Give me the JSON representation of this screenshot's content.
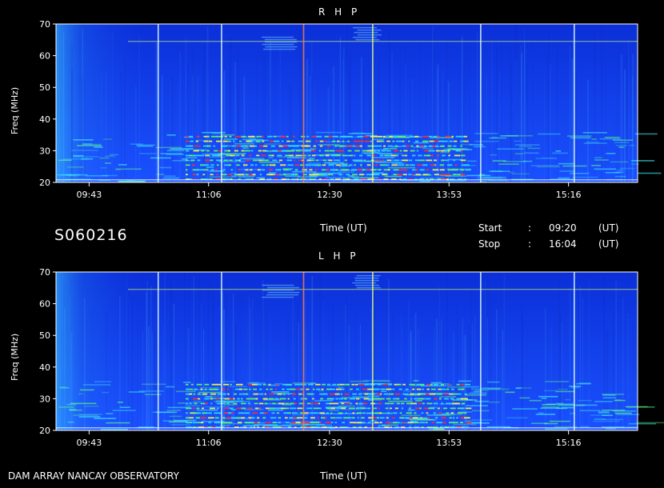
{
  "chart_data": [
    {
      "type": "heatmap",
      "title": "R H P",
      "ylabel": "Freq (MHz)",
      "xlabel": "Time (UT)",
      "ylim": [
        20,
        70
      ],
      "yticks": [
        20,
        30,
        40,
        50,
        60,
        70
      ],
      "xtick_labels": [
        "09:43",
        "11:06",
        "12:30",
        "13:53",
        "15:16"
      ],
      "start_time": "09:20",
      "stop_time": "16:04"
    },
    {
      "type": "heatmap",
      "title": "L H P",
      "ylabel": "Freq (MHz)",
      "xlabel": "Time (UT)",
      "ylim": [
        20,
        70
      ],
      "yticks": [
        20,
        30,
        40,
        50,
        60,
        70
      ],
      "xtick_labels": [
        "09:43",
        "11:06",
        "12:30",
        "13:53",
        "15:16"
      ],
      "start_time": "09:20",
      "stop_time": "16:04"
    }
  ],
  "info": {
    "code": "S060216",
    "time_label": "Time (UT)",
    "start_label": "Start",
    "stop_label": "Stop",
    "colon": ":",
    "start_value": "09:20",
    "stop_value": "16:04",
    "unit": "(UT)"
  },
  "footer": {
    "observatory": "DAM ARRAY   NANCAY OBSERVATORY",
    "time_label": "Time (UT)"
  }
}
